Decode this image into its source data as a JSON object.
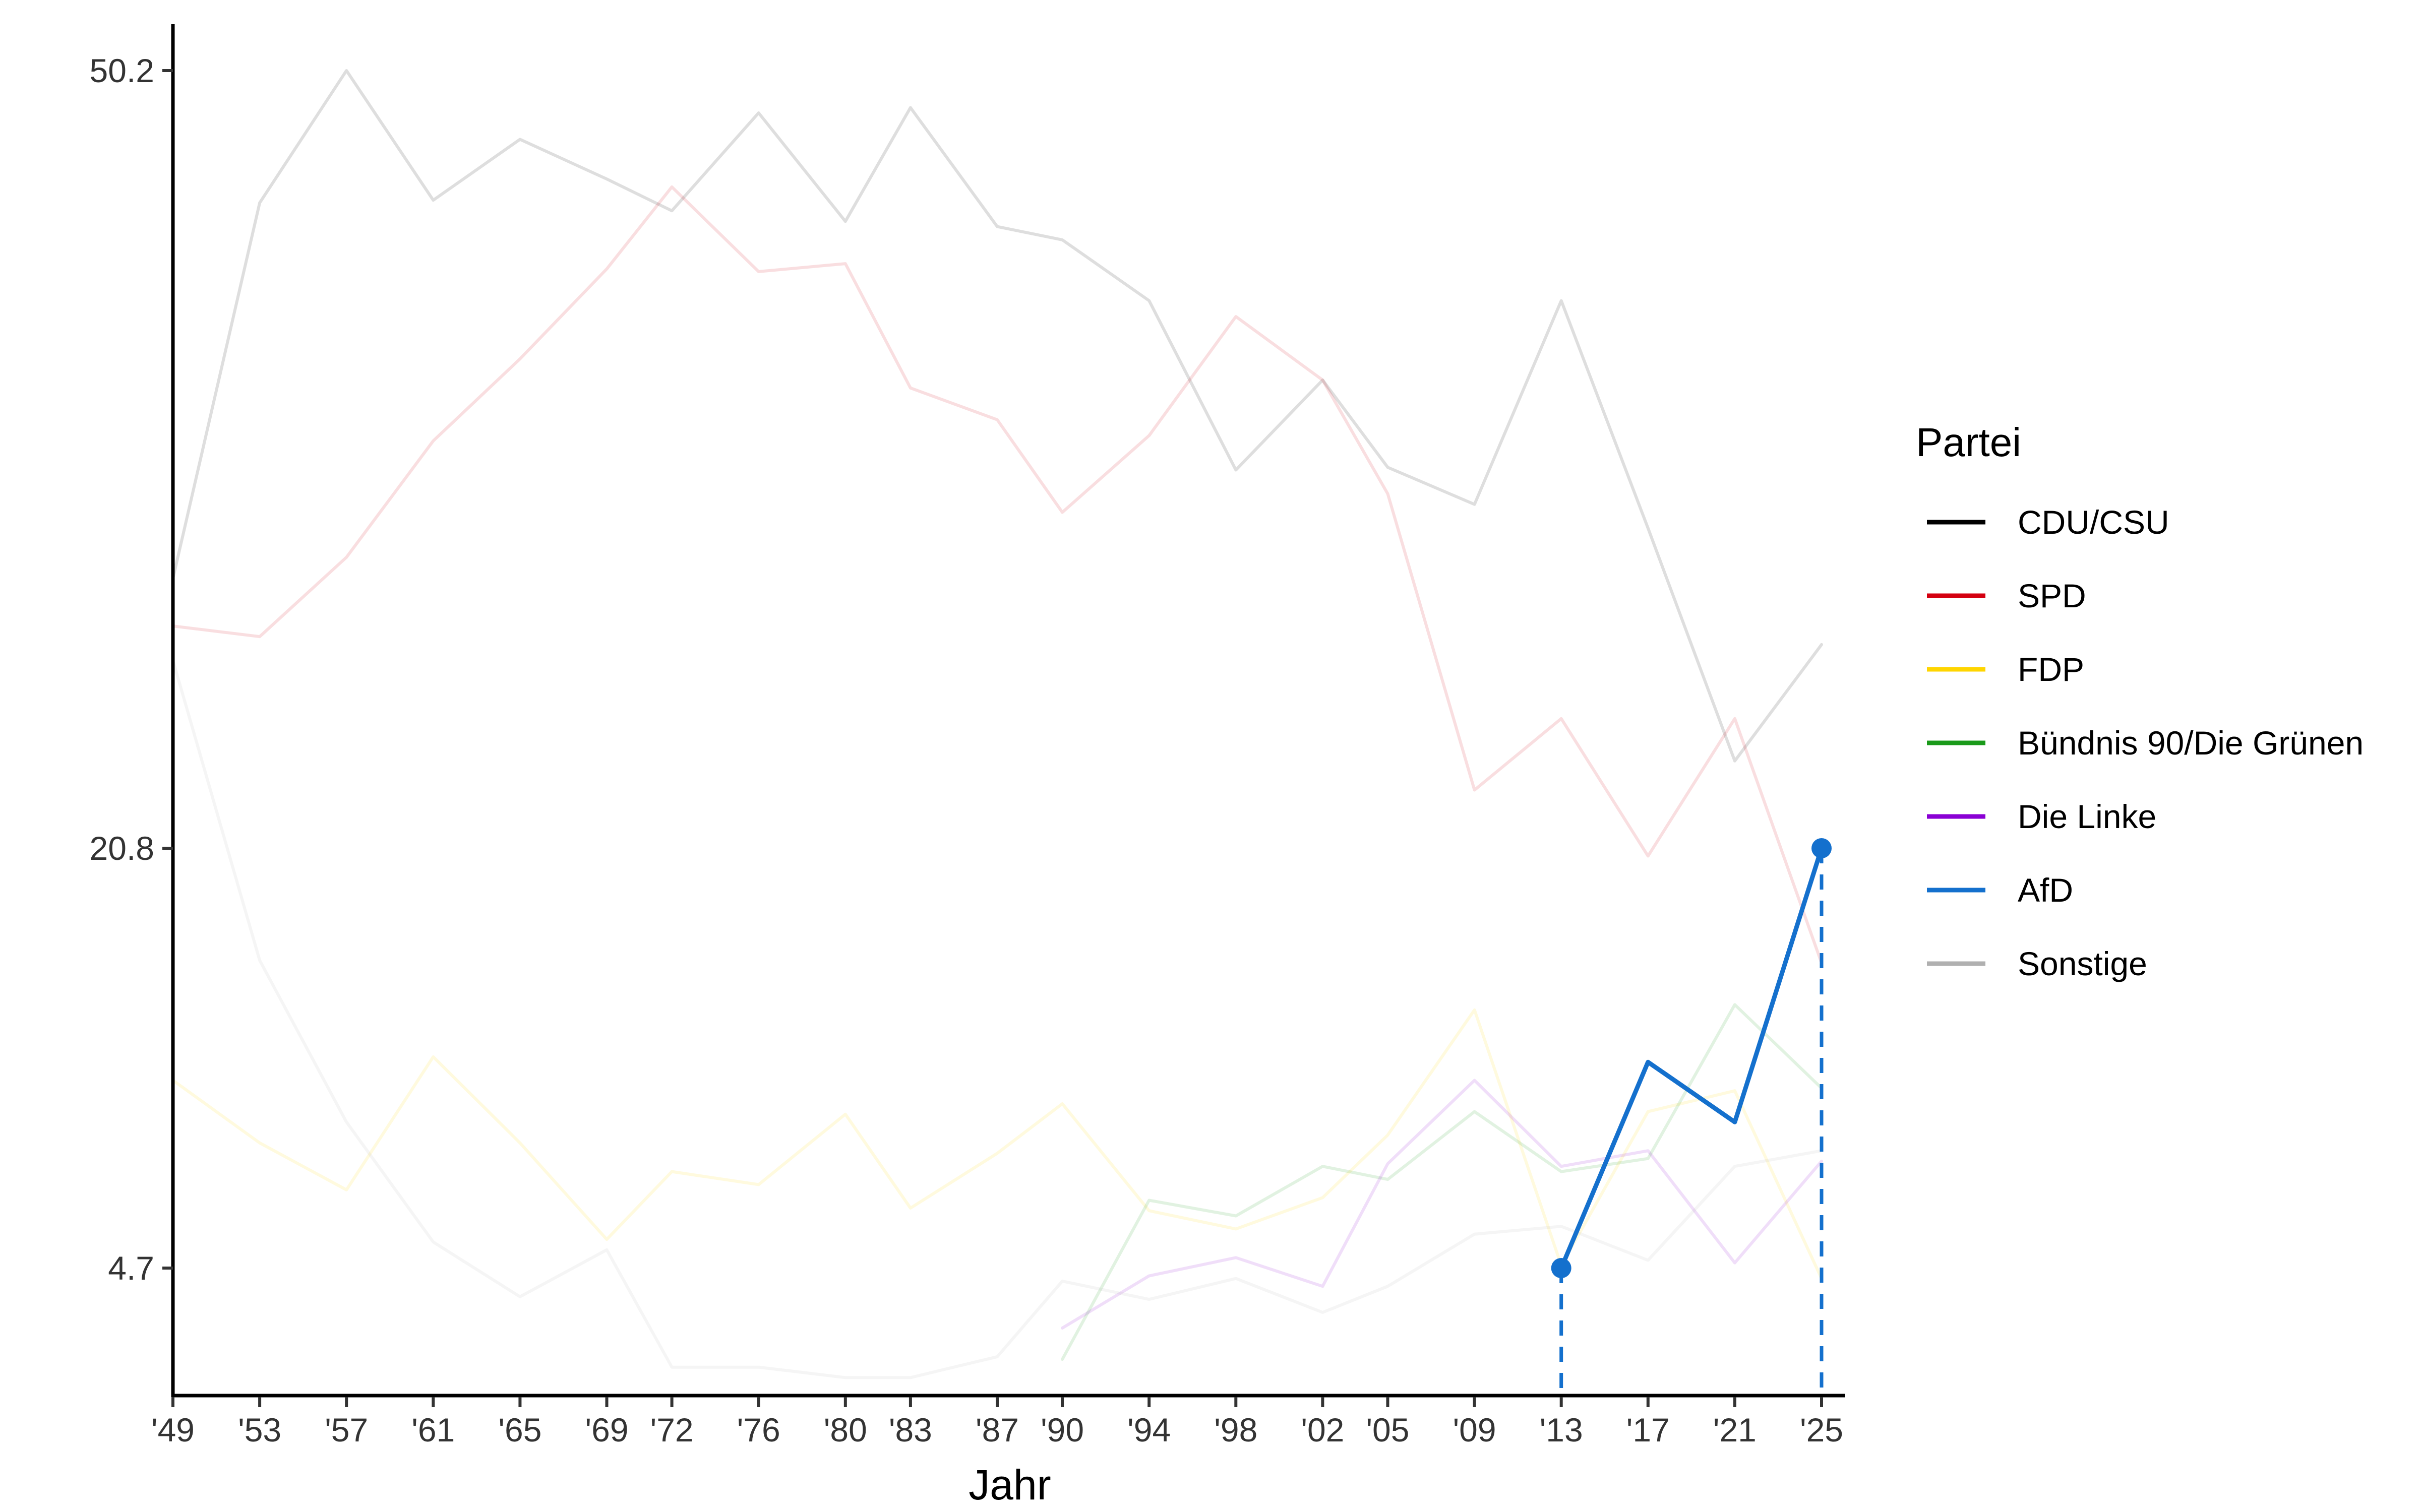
{
  "chart_data": {
    "type": "line",
    "title": "",
    "xlabel": "Jahr",
    "ylabel": "",
    "x": [
      "'49",
      "'53",
      "'57",
      "'61",
      "'65",
      "'69",
      "'72",
      "'76",
      "'80",
      "'83",
      "'87",
      "'90",
      "'94",
      "'98",
      "'02",
      "'05",
      "'09",
      "'13",
      "'17",
      "'21",
      "'25"
    ],
    "x_years": [
      1949,
      1953,
      1957,
      1961,
      1965,
      1969,
      1972,
      1976,
      1980,
      1983,
      1987,
      1990,
      1994,
      1998,
      2002,
      2005,
      2009,
      2013,
      2017,
      2021,
      2025
    ],
    "yticks": [
      50.2,
      20.8,
      4.7
    ],
    "ytick_labels": [
      "50.2",
      "20.8",
      "4.7"
    ],
    "ylim": [
      0,
      52
    ],
    "grid": false,
    "legend": {
      "title": "Partei",
      "position": "right"
    },
    "series": [
      {
        "name": "CDU/CSU",
        "color": "#000000",
        "highlighted": false,
        "values": [
          31.0,
          45.2,
          50.2,
          45.3,
          47.6,
          46.1,
          44.9,
          48.6,
          44.5,
          48.8,
          44.3,
          43.8,
          41.5,
          35.1,
          38.5,
          35.2,
          33.8,
          41.5,
          32.9,
          24.1,
          28.5
        ]
      },
      {
        "name": "SPD",
        "color": "#d40010",
        "highlighted": false,
        "values": [
          29.2,
          28.8,
          31.8,
          36.2,
          39.3,
          42.7,
          45.8,
          42.6,
          42.9,
          38.2,
          37.0,
          33.5,
          36.4,
          40.9,
          38.5,
          34.2,
          23.0,
          25.7,
          20.5,
          25.7,
          16.4
        ]
      },
      {
        "name": "FDP",
        "color": "#ffd500",
        "highlighted": false,
        "values": [
          11.9,
          9.5,
          7.7,
          12.8,
          9.5,
          5.8,
          8.4,
          7.9,
          10.6,
          7.0,
          9.1,
          11.0,
          6.9,
          6.2,
          7.4,
          9.8,
          14.6,
          4.8,
          10.7,
          11.5,
          4.3
        ]
      },
      {
        "name": "Bündnis 90/Die Grünen",
        "color": "#1a9a1a",
        "highlighted": false,
        "values": [
          null,
          null,
          null,
          null,
          null,
          null,
          null,
          null,
          null,
          null,
          null,
          1.2,
          7.3,
          6.7,
          8.6,
          8.1,
          10.7,
          8.4,
          8.9,
          14.8,
          11.6
        ]
      },
      {
        "name": "Die Linke",
        "color": "#8a00d4",
        "highlighted": false,
        "values": [
          null,
          null,
          null,
          null,
          null,
          null,
          null,
          null,
          null,
          null,
          null,
          2.4,
          4.4,
          5.1,
          4.0,
          8.7,
          11.9,
          8.6,
          9.2,
          4.9,
          8.8
        ]
      },
      {
        "name": "AfD",
        "color": "#1470cd",
        "highlighted": true,
        "values": [
          null,
          null,
          null,
          null,
          null,
          null,
          null,
          null,
          null,
          null,
          null,
          null,
          null,
          null,
          null,
          null,
          null,
          4.7,
          12.6,
          10.3,
          20.8
        ]
      },
      {
        "name": "Sonstige",
        "color": "#b0b0b0",
        "highlighted": false,
        "values": [
          27.9,
          16.5,
          10.3,
          5.7,
          3.6,
          5.4,
          0.9,
          0.9,
          0.5,
          0.5,
          1.3,
          4.2,
          3.5,
          4.3,
          3.0,
          4.0,
          6.0,
          6.3,
          5.0,
          8.6,
          9.2
        ]
      }
    ],
    "highlight_points": [
      {
        "series": "AfD",
        "x": "'13",
        "y": 4.7
      },
      {
        "series": "AfD",
        "x": "'25",
        "y": 20.8
      }
    ]
  }
}
